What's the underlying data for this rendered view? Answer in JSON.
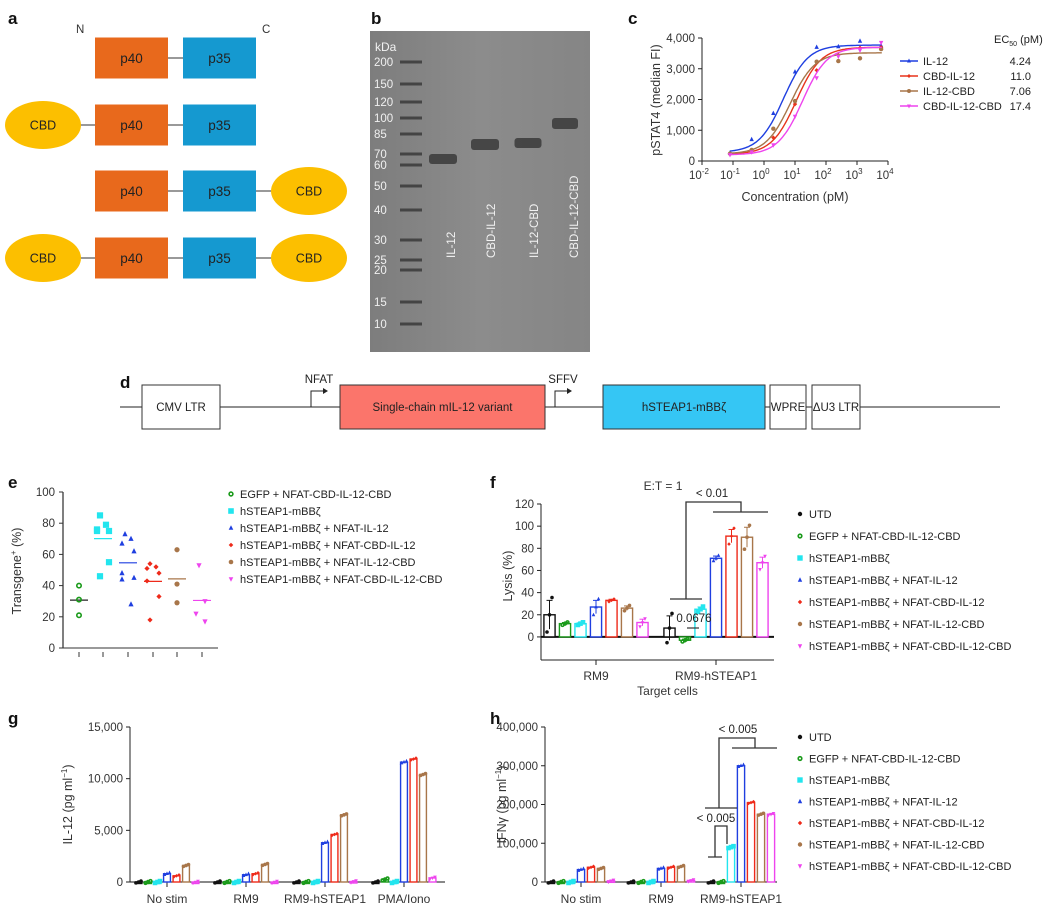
{
  "panel_labels": {
    "a": "a",
    "b": "b",
    "c": "c",
    "d": "d",
    "e": "e",
    "f": "f",
    "g": "g",
    "h": "h"
  },
  "panel_a": {
    "n_label": "N",
    "c_label": "C",
    "constructs": [
      {
        "name": "IL-12",
        "parts": [
          "p40",
          "p35"
        ],
        "cbd_n": false,
        "cbd_c": false
      },
      {
        "name": "CBD-IL-12",
        "parts": [
          "p40",
          "p35"
        ],
        "cbd_n": true,
        "cbd_c": false
      },
      {
        "name": "IL-12-CBD",
        "parts": [
          "p40",
          "p35"
        ],
        "cbd_n": false,
        "cbd_c": true
      },
      {
        "name": "CBD-IL-12-CBD",
        "parts": [
          "p40",
          "p35"
        ],
        "cbd_n": true,
        "cbd_c": true
      }
    ],
    "cbd_label": "CBD",
    "colors": {
      "p40": "#e8691c",
      "p35": "#1599d0",
      "cbd": "#fcbf00"
    }
  },
  "panel_b": {
    "unit": "kDa",
    "ladder": [
      "200",
      "150",
      "120",
      "100",
      "85",
      "70",
      "60",
      "50",
      "40",
      "30",
      "25",
      "20",
      "15",
      "10"
    ],
    "lanes": [
      "IL-12",
      "CBD-IL-12",
      "IL-12-CBD",
      "CBD-IL-12-CBD"
    ]
  },
  "chart_data": [
    {
      "id": "c",
      "type": "line",
      "xscale": "log",
      "xlabel": "Concentration (pM)",
      "ylabel": "pSTAT4 (median FI)",
      "xlim_log10": [
        -2,
        4
      ],
      "ylim": [
        0,
        4000
      ],
      "yticks": [
        "0",
        "1,000",
        "2,000",
        "3,000",
        "4,000"
      ],
      "xticks_exp": [
        "-2",
        "-1",
        "0",
        "1",
        "2",
        "3",
        "4"
      ],
      "x": [
        0.08,
        0.4,
        2,
        10,
        50,
        250,
        1250,
        6000
      ],
      "legend_title": "EC50 (pM)",
      "series": [
        {
          "name": "IL-12",
          "ec50": "4.24",
          "color": "#1f3fe0",
          "bottom": 280,
          "top": 3770,
          "values": [
            260,
            700,
            1550,
            2900,
            3700,
            3720,
            3900,
            3750
          ]
        },
        {
          "name": "CBD-IL-12",
          "ec50": "11.0",
          "color": "#e8341c",
          "bottom": 220,
          "top": 3700,
          "values": [
            230,
            330,
            760,
            1850,
            2950,
            3450,
            3680,
            3700
          ]
        },
        {
          "name": "IL-12-CBD",
          "ec50": "7.06",
          "color": "#a8764a",
          "bottom": 230,
          "top": 3520,
          "values": [
            240,
            360,
            1050,
            1950,
            3230,
            3250,
            3340,
            3640
          ]
        },
        {
          "name": "CBD-IL-12-CBD",
          "ec50": "17.4",
          "color": "#ee44ee",
          "bottom": 200,
          "top": 3700,
          "values": [
            200,
            290,
            520,
            1450,
            2700,
            3400,
            3600,
            3850
          ]
        }
      ]
    },
    {
      "id": "e",
      "type": "scatter",
      "ylabel": "Transgene+ (%)",
      "ylim": [
        0,
        100
      ],
      "yticks": [
        "0",
        "20",
        "40",
        "60",
        "80",
        "100"
      ],
      "groups": [
        {
          "name": "EGFP + NFAT-CBD-IL-12-CBD",
          "color": "#1a9a1a",
          "marker": "circle-open",
          "values": [
            40,
            31,
            21
          ],
          "mean": 30.7
        },
        {
          "name": "hSTEAP1-mBBζ",
          "color": "#22e5ee",
          "marker": "square",
          "values": [
            85,
            79,
            76,
            75,
            75,
            55,
            46
          ],
          "mean": 70.1
        },
        {
          "name": "hSTEAP1-mBBζ + NFAT-IL-12",
          "color": "#1f3fe0",
          "marker": "triangle",
          "values": [
            73,
            70,
            67,
            62,
            48,
            45,
            44,
            28
          ],
          "mean": 54.6
        },
        {
          "name": "hSTEAP1-mBBζ + NFAT-CBD-IL-12",
          "color": "#ee2a1a",
          "marker": "diamond",
          "values": [
            54,
            52,
            51,
            48,
            43,
            33,
            18
          ],
          "mean": 42.7
        },
        {
          "name": "hSTEAP1-mBBζ + NFAT-IL-12-CBD",
          "color": "#a8764a",
          "marker": "circle",
          "values": [
            63,
            41,
            29
          ],
          "mean": 44.3
        },
        {
          "name": "hSTEAP1-mBBζ + NFAT-CBD-IL-12-CBD",
          "color": "#ee44ee",
          "marker": "triangle-down",
          "values": [
            53,
            30,
            22,
            17
          ],
          "mean": 30.5
        }
      ]
    },
    {
      "id": "f",
      "type": "bar",
      "title": "E:T = 1",
      "xlabel": "Target cells",
      "ylabel": "Lysis (%)",
      "ylim": [
        -10,
        120
      ],
      "yticks": [
        "0",
        "20",
        "40",
        "60",
        "80",
        "100",
        "120"
      ],
      "categories": [
        "RM9",
        "RM9-hSTEAP1"
      ],
      "series": [
        {
          "name": "UTD",
          "color": "#111111",
          "values": [
            20,
            8
          ],
          "err": [
            13,
            11
          ]
        },
        {
          "name": "EGFP + NFAT-CBD-IL-12-CBD",
          "color": "#1a9a1a",
          "values": [
            12,
            -3
          ],
          "err": [
            1,
            1
          ]
        },
        {
          "name": "hSTEAP1-mBBζ",
          "color": "#22e5ee",
          "values": [
            12,
            25
          ],
          "err": [
            1,
            2
          ]
        },
        {
          "name": "hSTEAP1-mBBζ + NFAT-IL-12",
          "color": "#1f3fe0",
          "values": [
            27,
            71
          ],
          "err": [
            6,
            2
          ]
        },
        {
          "name": "hSTEAP1-mBBζ + NFAT-CBD-IL-12",
          "color": "#ee2a1a",
          "values": [
            33,
            91
          ],
          "err": [
            1,
            6
          ]
        },
        {
          "name": "hSTEAP1-mBBζ + NFAT-IL-12-CBD",
          "color": "#a8764a",
          "values": [
            26,
            90
          ],
          "err": [
            2,
            9
          ]
        },
        {
          "name": "hSTEAP1-mBBζ + NFAT-CBD-IL-12-CBD",
          "color": "#ee44ee",
          "values": [
            13,
            67
          ],
          "err": [
            3,
            5
          ]
        }
      ],
      "annotations": [
        "< 0.01",
        "0.0676"
      ]
    },
    {
      "id": "g",
      "type": "bar",
      "ylabel": "IL-12 (pg ml−1)",
      "ylim": [
        0,
        15000
      ],
      "yticks": [
        "0",
        "5,000",
        "10,000",
        "15,000"
      ],
      "categories": [
        "No stim",
        "RM9",
        "RM9-hSTEAP1",
        "PMA/Iono"
      ],
      "series": [
        {
          "name": "UTD",
          "color": "#111111",
          "values": [
            0,
            0,
            0,
            0
          ]
        },
        {
          "name": "EGFP + NFAT-CBD-IL-12-CBD",
          "color": "#1a9a1a",
          "values": [
            0,
            0,
            0,
            250
          ]
        },
        {
          "name": "hSTEAP1-mBBζ",
          "color": "#22e5ee",
          "values": [
            0,
            0,
            0,
            0
          ]
        },
        {
          "name": "hSTEAP1-mBBζ + NFAT-IL-12",
          "color": "#1f3fe0",
          "values": [
            800,
            700,
            3800,
            11600
          ]
        },
        {
          "name": "hSTEAP1-mBBζ + NFAT-CBD-IL-12",
          "color": "#ee2a1a",
          "values": [
            600,
            800,
            4600,
            11900
          ]
        },
        {
          "name": "hSTEAP1-mBBζ + NFAT-IL-12-CBD",
          "color": "#a8764a",
          "values": [
            1600,
            1700,
            6500,
            10400
          ]
        },
        {
          "name": "hSTEAP1-mBBζ + NFAT-CBD-IL-12-CBD",
          "color": "#ee44ee",
          "values": [
            0,
            0,
            50,
            400
          ]
        }
      ]
    },
    {
      "id": "h",
      "type": "bar",
      "ylabel": "IFNγ (pg ml−1)",
      "ylim": [
        0,
        400000
      ],
      "yticks": [
        "0",
        "100,000",
        "200,000",
        "300,000",
        "400,000"
      ],
      "categories": [
        "No stim",
        "RM9",
        "RM9-hSTEAP1"
      ],
      "series": [
        {
          "name": "UTD",
          "color": "#111111",
          "values": [
            0,
            0,
            0
          ]
        },
        {
          "name": "EGFP + NFAT-CBD-IL-12-CBD",
          "color": "#1a9a1a",
          "values": [
            0,
            0,
            0
          ]
        },
        {
          "name": "hSTEAP1-mBBζ",
          "color": "#22e5ee",
          "values": [
            0,
            0,
            90000
          ]
        },
        {
          "name": "hSTEAP1-mBBζ + NFAT-IL-12",
          "color": "#1f3fe0",
          "values": [
            32000,
            35000,
            300000
          ]
        },
        {
          "name": "hSTEAP1-mBBζ + NFAT-CBD-IL-12",
          "color": "#ee2a1a",
          "values": [
            38000,
            38000,
            205000
          ]
        },
        {
          "name": "hSTEAP1-mBBζ + NFAT-IL-12-CBD",
          "color": "#a8764a",
          "values": [
            35000,
            40000,
            175000
          ]
        },
        {
          "name": "hSTEAP1-mBBζ + NFAT-CBD-IL-12-CBD",
          "color": "#ee44ee",
          "values": [
            3000,
            4000,
            175000
          ]
        }
      ],
      "annotations": [
        "< 0.005",
        "< 0.005"
      ]
    }
  ],
  "panel_d": {
    "elements": [
      "CMV LTR",
      "Single-chain mIL-12 variant",
      "hSTEAP1-mBBζ",
      "WPRE",
      "ΔU3 LTR"
    ],
    "promoters": [
      "NFAT",
      "SFFV"
    ],
    "colors": {
      "il12": "#fb756b",
      "car": "#35c6f4"
    }
  },
  "legend_f_h": [
    "UTD",
    "EGFP + NFAT-CBD-IL-12-CBD",
    "hSTEAP1-mBBζ",
    "hSTEAP1-mBBζ + NFAT-IL-12",
    "hSTEAP1-mBBζ + NFAT-CBD-IL-12",
    "hSTEAP1-mBBζ + NFAT-IL-12-CBD",
    "hSTEAP1-mBBζ + NFAT-CBD-IL-12-CBD"
  ]
}
